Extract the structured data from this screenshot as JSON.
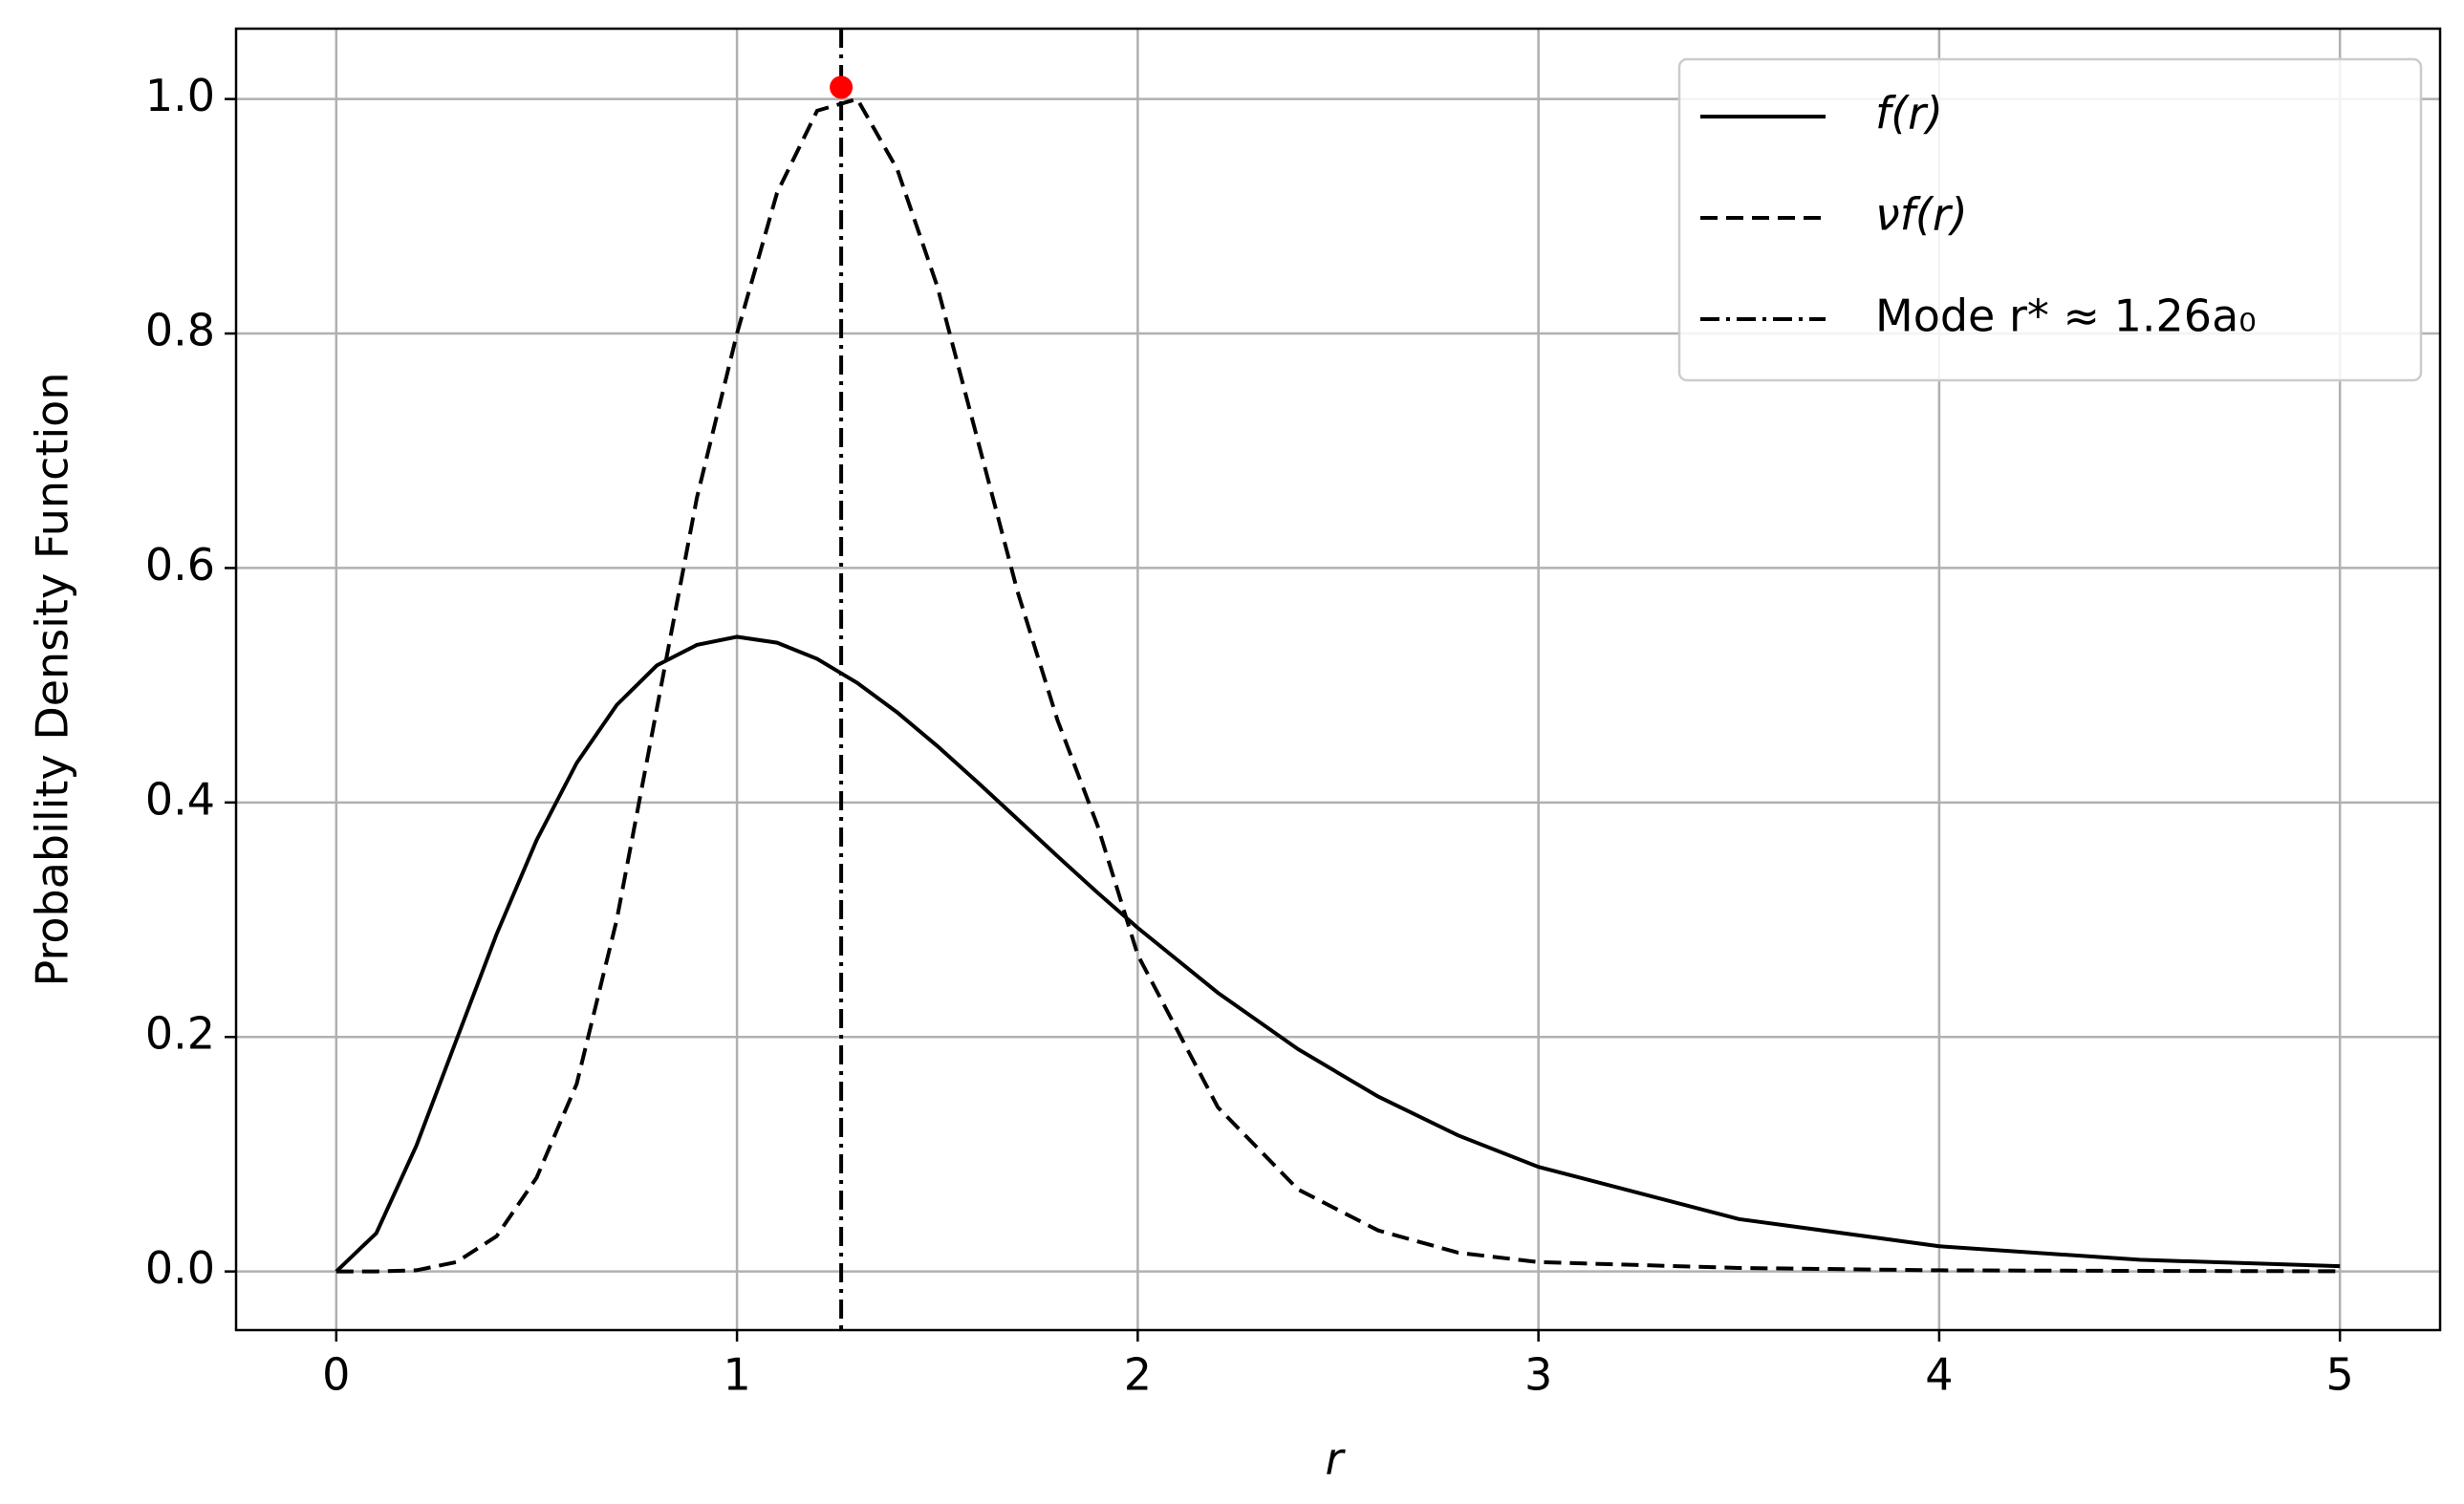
{
  "chart_data": {
    "type": "line",
    "xlabel": "r",
    "ylabel": "Probability Density Function",
    "x": [
      0,
      0.1,
      0.2,
      0.3,
      0.4,
      0.5,
      0.6,
      0.7,
      0.8,
      0.9,
      1.0,
      1.1,
      1.2,
      1.3,
      1.4,
      1.5,
      1.6,
      1.7,
      1.8,
      1.9,
      2.0,
      2.2,
      2.4,
      2.6,
      2.8,
      3.0,
      3.5,
      4.0,
      4.5,
      5.0
    ],
    "series": [
      {
        "name": "f(r)",
        "color": "#000000",
        "style": "solid",
        "values": [
          0,
          0.0327,
          0.1073,
          0.1976,
          0.2876,
          0.3679,
          0.4337,
          0.4832,
          0.5169,
          0.5344,
          0.5413,
          0.5363,
          0.5225,
          0.502,
          0.4768,
          0.4481,
          0.4174,
          0.3858,
          0.3541,
          0.323,
          0.2931,
          0.2377,
          0.1896,
          0.1492,
          0.116,
          0.0892,
          0.0447,
          0.0215,
          0.01,
          0.0045
        ]
      },
      {
        "name": "νf(r)",
        "color": "#000000",
        "style": "dashed",
        "values": [
          0,
          0,
          0.001,
          0.008,
          0.03,
          0.08,
          0.16,
          0.3,
          0.48,
          0.66,
          0.8,
          0.92,
          0.99,
          1.0,
          0.94,
          0.84,
          0.71,
          0.58,
          0.47,
          0.38,
          0.27,
          0.14,
          0.07,
          0.035,
          0.016,
          0.008,
          0.003,
          0.001,
          0.0005,
          0.0002
        ]
      }
    ],
    "mode": {
      "name": "Mode r* ≈ 1.26a₀",
      "x": 1.26,
      "y": 1.01,
      "color": "#000000",
      "marker_color": "#ff0000",
      "style": "dashdot"
    },
    "xlim": [
      -0.25,
      5.25
    ],
    "xticks": [
      0,
      1,
      2,
      3,
      4,
      5
    ],
    "ylim": [
      -0.05,
      1.06
    ],
    "yticks": [
      {
        "value": 0,
        "label": "0.0"
      },
      {
        "value": 0.2,
        "label": "0.2"
      },
      {
        "value": 0.4,
        "label": "0.4"
      },
      {
        "value": 0.6,
        "label": "0.6"
      },
      {
        "value": 0.8,
        "label": "0.8"
      },
      {
        "value": 1.0,
        "label": "1.0"
      }
    ],
    "grid": true,
    "legend": "upper right"
  }
}
